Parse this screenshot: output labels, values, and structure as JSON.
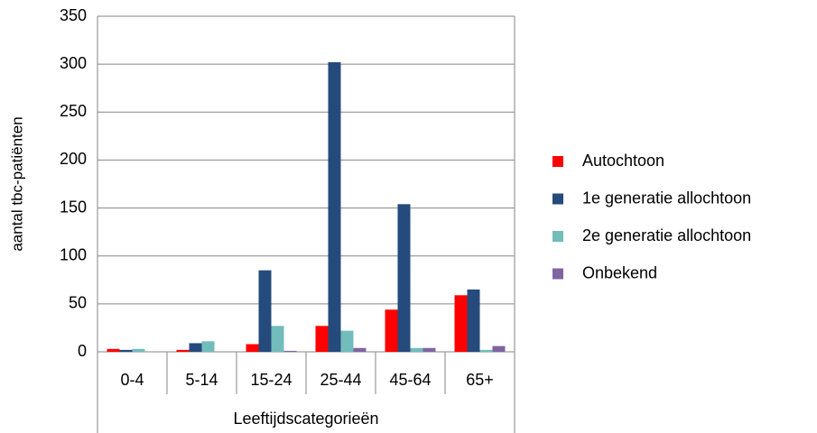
{
  "chart_data": {
    "type": "bar",
    "y_label": "aantal tbc-patiënten",
    "x_label": "Leeftijdscategorieën",
    "categories": [
      "0-4",
      "5-14",
      "15-24",
      "25-44",
      "45-64",
      "65+"
    ],
    "series": [
      {
        "name": "Autochtoon",
        "color": "#ff0000",
        "values": [
          3,
          2,
          8,
          27,
          44,
          59
        ]
      },
      {
        "name": "1e generatie allochtoon",
        "color": "#254a7c",
        "values": [
          2,
          9,
          85,
          302,
          154,
          65
        ]
      },
      {
        "name": "2e generatie allochtoon",
        "color": "#72bcbc",
        "values": [
          3,
          11,
          27,
          22,
          4,
          2
        ]
      },
      {
        "name": "Onbekend",
        "color": "#8064a2",
        "values": [
          0,
          0,
          1,
          4,
          4,
          6
        ]
      }
    ],
    "ylim": [
      0,
      350
    ],
    "yticks": [
      0,
      50,
      100,
      150,
      200,
      250,
      300,
      350
    ],
    "grid": true,
    "legend": "right"
  }
}
